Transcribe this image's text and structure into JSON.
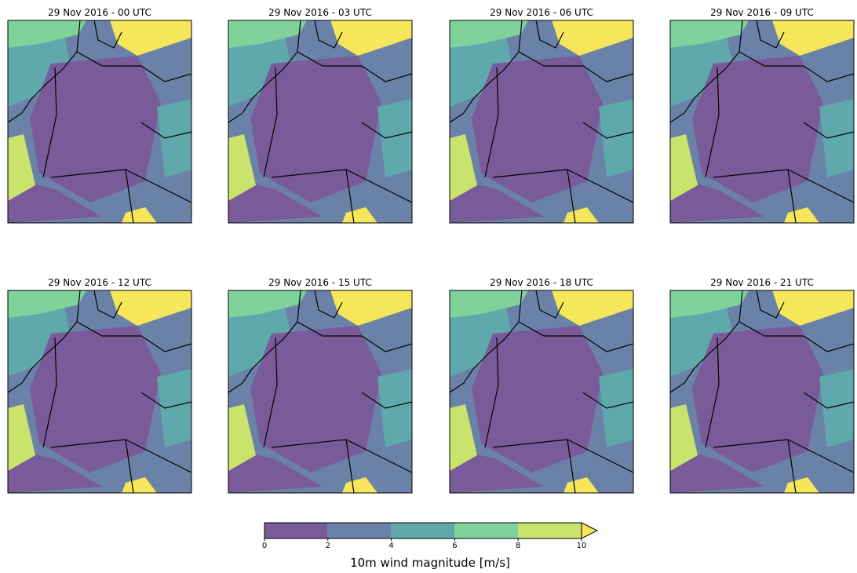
{
  "panels": [
    {
      "title": "29 Nov 2016 - 00 UTC"
    },
    {
      "title": "29 Nov 2016 - 03 UTC"
    },
    {
      "title": "29 Nov 2016 - 06 UTC"
    },
    {
      "title": "29 Nov 2016 - 09 UTC"
    },
    {
      "title": "29 Nov 2016 - 12 UTC"
    },
    {
      "title": "29 Nov 2016 - 15 UTC"
    },
    {
      "title": "29 Nov 2016 - 18 UTC"
    },
    {
      "title": "29 Nov 2016 - 21 UTC"
    }
  ],
  "colorbar": {
    "label": "10m wind magnitude [m/s]",
    "ticks": [
      0,
      2,
      4,
      6,
      8,
      10
    ],
    "colors": [
      "#7a5b99",
      "#6b82a8",
      "#5fa9ad",
      "#80d29a",
      "#c9e36c"
    ],
    "extend": "max",
    "extend_color": "#f5e65a"
  }
}
